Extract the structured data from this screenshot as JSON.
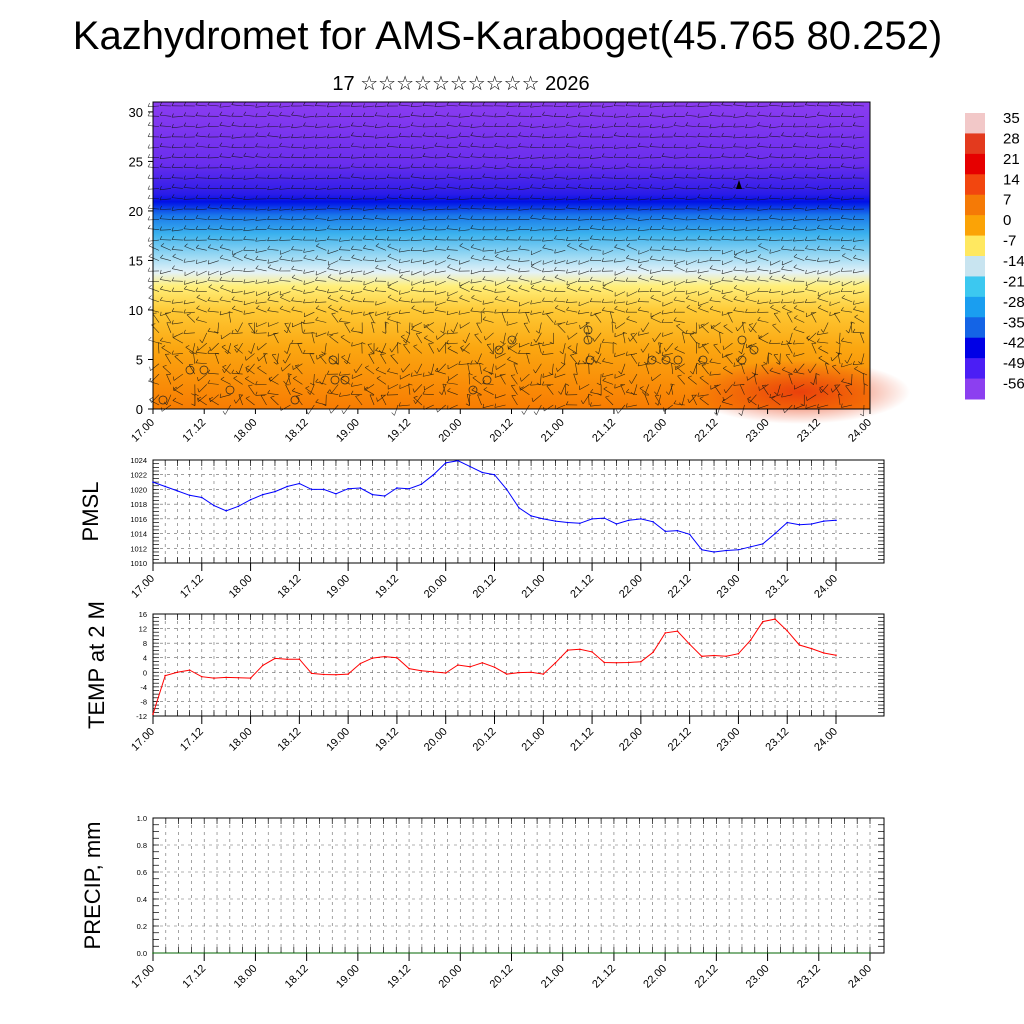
{
  "title": "Kazhydromet for AMS-Karaboget(45.765 80.252)",
  "subtitle": "17 ☆☆☆☆☆☆☆☆☆☆ 2026",
  "time_ticks": [
    "17.00",
    "17.12",
    "18.00",
    "18.12",
    "19.00",
    "19.12",
    "20.00",
    "20.12",
    "21.00",
    "21.12",
    "22.00",
    "22.12",
    "23.00",
    "23.12",
    "24.00"
  ],
  "colors": {
    "pmsl_line": "#0000ff",
    "temp_line": "#ff0000",
    "precip_line": "#006400"
  },
  "chart_data": [
    {
      "type": "heatmap",
      "title": "",
      "xlabel": "",
      "ylabel": "",
      "ylim": [
        0,
        31
      ],
      "yticks": [
        0,
        5,
        10,
        15,
        20,
        25,
        30
      ],
      "x": [
        0,
        1,
        2,
        3,
        4,
        5,
        6,
        7,
        8,
        9,
        10,
        11,
        12,
        13,
        14
      ],
      "color_field": "temperature by height (cross-section) with wind barbs",
      "colorbar": {
        "labels": [
          "35",
          "28",
          "21",
          "14",
          "7",
          "0",
          "-7",
          "-14",
          "-21",
          "-28",
          "-35",
          "-42",
          "-49",
          "-56"
        ],
        "values": [
          35,
          28,
          21,
          14,
          7,
          0,
          -7,
          -14,
          -21,
          -28,
          -35,
          -42,
          -49,
          -56
        ],
        "colors": [
          "#f2c8c8",
          "#e33a1e",
          "#e60000",
          "#f2460f",
          "#f57a06",
          "#fba306",
          "#ffe860",
          "#c8e4f0",
          "#3cc8f0",
          "#1a9ef0",
          "#1464e6",
          "#0000e6",
          "#4b1ef5",
          "#8c3ff0"
        ]
      }
    },
    {
      "type": "line",
      "ylabel": "PMSL",
      "ylim": [
        1010,
        1024
      ],
      "yticks": [
        1010,
        1012,
        1014,
        1016,
        1018,
        1020,
        1022,
        1024
      ],
      "x_range": [
        0,
        14
      ],
      "x": [
        0,
        0.25,
        0.5,
        0.75,
        1,
        1.25,
        1.5,
        1.75,
        2,
        2.25,
        2.5,
        2.75,
        3,
        3.25,
        3.5,
        3.75,
        4,
        4.25,
        4.5,
        4.75,
        5,
        5.25,
        5.5,
        5.75,
        6,
        6.25,
        6.5,
        6.75,
        7,
        7.25,
        7.5,
        7.75,
        8,
        8.25,
        8.5,
        8.75,
        9,
        9.25,
        9.5,
        9.75,
        10,
        10.25,
        10.5,
        10.75,
        11,
        11.25,
        11.5,
        11.75,
        12,
        12.25,
        12.5,
        12.75,
        13,
        13.25,
        13.5,
        13.75,
        14
      ],
      "values": [
        1021.0,
        1020.4,
        1019.8,
        1019.2,
        1018.9,
        1017.8,
        1017.1,
        1017.7,
        1018.6,
        1019.3,
        1019.7,
        1020.4,
        1020.8,
        1020.0,
        1020.0,
        1019.4,
        1020.1,
        1020.2,
        1019.3,
        1019.1,
        1020.2,
        1020.1,
        1020.7,
        1022.0,
        1023.6,
        1023.9,
        1023.1,
        1022.3,
        1022.0,
        1020.0,
        1017.5,
        1016.4,
        1016.0,
        1015.7,
        1015.5,
        1015.4,
        1016.0,
        1016.1,
        1015.3,
        1015.8,
        1016.0,
        1015.6,
        1014.3,
        1014.4,
        1013.9,
        1011.8,
        1011.5,
        1011.7,
        1011.8,
        1012.2,
        1012.6,
        1014.0,
        1015.5,
        1015.2,
        1015.3,
        1015.7,
        1015.8
      ]
    },
    {
      "type": "line",
      "ylabel": "TEMP at 2 M",
      "ylim": [
        -12,
        16
      ],
      "yticks": [
        -12,
        -8,
        -4,
        0,
        4,
        8,
        12,
        16
      ],
      "x_range": [
        0,
        14
      ],
      "x": [
        0,
        0.25,
        0.5,
        0.75,
        1,
        1.25,
        1.5,
        1.75,
        2,
        2.25,
        2.5,
        2.75,
        3,
        3.25,
        3.5,
        3.75,
        4,
        4.25,
        4.5,
        4.75,
        5,
        5.25,
        5.5,
        5.75,
        6,
        6.25,
        6.5,
        6.75,
        7,
        7.25,
        7.5,
        7.75,
        8,
        8.25,
        8.5,
        8.75,
        9,
        9.25,
        9.5,
        9.75,
        10,
        10.25,
        10.5,
        10.75,
        11,
        11.25,
        11.5,
        11.75,
        12,
        12.25,
        12.5,
        12.75,
        13,
        13.25,
        13.5,
        13.75,
        14
      ],
      "values": [
        -11.5,
        -0.9,
        0.0,
        0.6,
        -1.2,
        -1.6,
        -1.4,
        -1.5,
        -1.6,
        1.9,
        3.8,
        3.6,
        3.6,
        -0.3,
        -0.6,
        -0.7,
        -0.5,
        2.4,
        3.9,
        4.3,
        4.0,
        1.0,
        0.4,
        0.1,
        -0.2,
        2.0,
        1.5,
        2.6,
        1.4,
        -0.5,
        -0.1,
        0.0,
        -0.5,
        2.6,
        6.1,
        6.3,
        5.6,
        2.7,
        2.6,
        2.7,
        2.9,
        5.5,
        10.8,
        11.3,
        7.7,
        4.4,
        4.6,
        4.4,
        5.1,
        8.8,
        13.9,
        14.6,
        11.4,
        7.5,
        6.5,
        5.3,
        4.7
      ]
    },
    {
      "type": "line",
      "ylabel": "PRECIP, mm",
      "ylim": [
        0.0,
        1.0
      ],
      "yticks": [
        "0.0",
        "0.2",
        "0.4",
        "0.6",
        "0.8",
        "1.0"
      ],
      "x_range": [
        0,
        14
      ],
      "x": [
        0,
        14
      ],
      "values": [
        0.0,
        0.0
      ]
    }
  ]
}
